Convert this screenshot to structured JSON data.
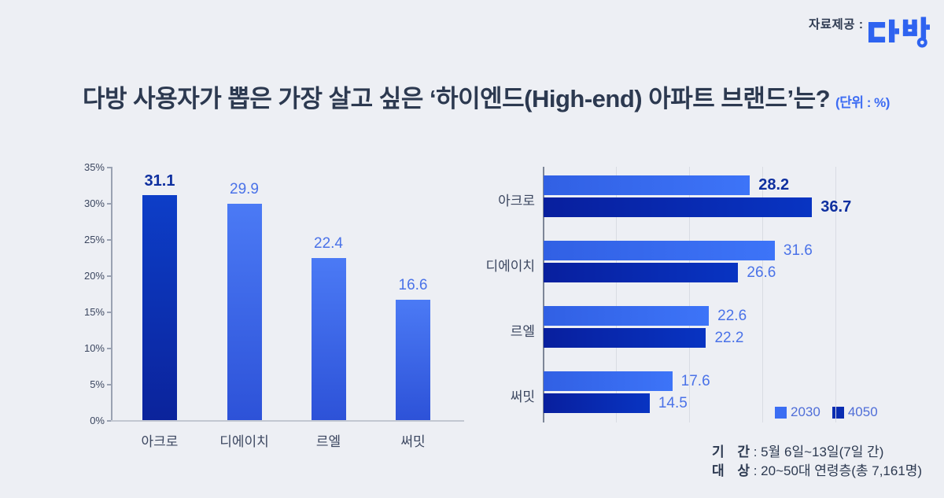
{
  "header": {
    "provider_label": "자료제공 :",
    "logo_alt": "다방"
  },
  "title": {
    "prefix": "다방 사용자가 뽑은 ",
    "emphasis": "가장 살고 싶은 ‘하이엔드(High-end) 아파트 브랜드’",
    "suffix": "는?",
    "unit": "(단위 : %)"
  },
  "chart_data": [
    {
      "id": "overall",
      "type": "bar",
      "orientation": "vertical",
      "categories": [
        "아크로",
        "디에이치",
        "르엘",
        "써밋"
      ],
      "values": [
        31.1,
        29.9,
        22.4,
        16.6
      ],
      "ylim": [
        0,
        35
      ],
      "ytick_step": 5,
      "ytick_suffix": "%",
      "grid": false,
      "highlight_index": 0
    },
    {
      "id": "by-age-group",
      "type": "bar",
      "orientation": "horizontal",
      "categories": [
        "아크로",
        "디에이치",
        "르엘",
        "써밋"
      ],
      "series": [
        {
          "name": "2030",
          "values": [
            28.2,
            31.6,
            22.6,
            17.6
          ]
        },
        {
          "name": "4050",
          "values": [
            36.7,
            26.6,
            22.2,
            14.5
          ]
        }
      ],
      "xlim": [
        0,
        44
      ],
      "gridline_step": 10,
      "grid": true,
      "legend_position": "bottom-right",
      "highlight_index": 0
    }
  ],
  "legend": {
    "items": [
      {
        "label": "2030",
        "color": "#3b6ef3"
      },
      {
        "label": "4050",
        "color": "#0a2db2"
      }
    ]
  },
  "footer": {
    "period_label": "기 간",
    "period_value": " : 5월 6일~13일(7일 간)",
    "target_label": "대 상",
    "target_value": " : 20~50대 연령층(총 7,161명)"
  },
  "colors": {
    "background": "#edeff4",
    "title_text": "#2c3950",
    "accent_blue": "#3d6cf3",
    "bar_highlight_top": "#0d3ec8",
    "bar_highlight_bottom": "#0b239b",
    "bar_regular_top": "#4b7af5",
    "bar_regular_bottom": "#2d52d8",
    "series_2030": "#3b6ef3",
    "series_4050": "#0a2db2",
    "value_label_regular": "#4a72e8",
    "value_label_highlight": "#0e2f9f",
    "axis_text": "#3c4760"
  }
}
